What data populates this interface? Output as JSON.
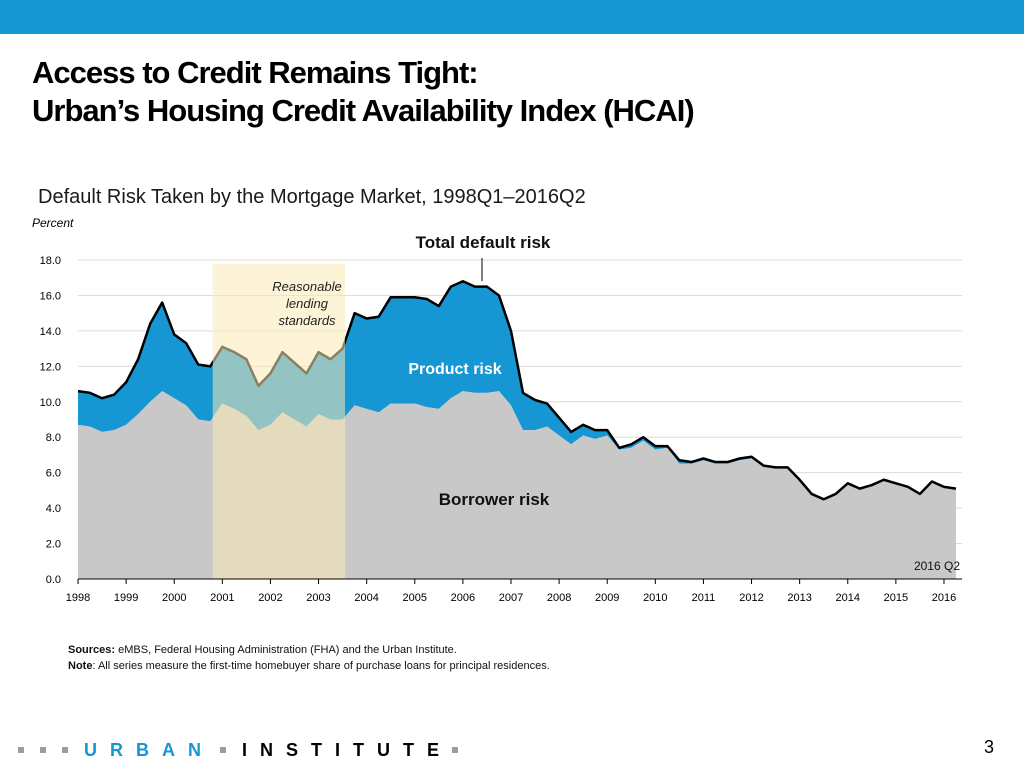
{
  "header": {
    "title_line1": "Access to Credit Remains Tight:",
    "title_line2": "Urban’s Housing Credit Availability Index (HCAI)"
  },
  "colors": {
    "accent": "#1696d2",
    "borrower": "#c8c8c8",
    "product": "#1696d2",
    "total": "#000000",
    "highlight": "#fbe9b6"
  },
  "chart_data": {
    "type": "area",
    "title": "Default Risk Taken by the Mortgage Market, 1998Q1–2016Q2",
    "ylabel": "Percent",
    "xlabel": "",
    "ylim": [
      0,
      18
    ],
    "yticks": [
      "0.0",
      "2.0",
      "4.0",
      "6.0",
      "8.0",
      "10.0",
      "12.0",
      "14.0",
      "16.0",
      "18.0"
    ],
    "xticks": [
      "1998",
      "1999",
      "2000",
      "2001",
      "2002",
      "2003",
      "2004",
      "2005",
      "2006",
      "2007",
      "2008",
      "2009",
      "2010",
      "2011",
      "2012",
      "2013",
      "2014",
      "2015",
      "2016"
    ],
    "xlim": [
      1998.0,
      2016.25
    ],
    "grid": true,
    "highlight_band": {
      "start": 2000.8,
      "end": 2003.55,
      "label": "Reasonable lending standards"
    },
    "annotations": {
      "total_label": "Total default risk",
      "product_label": "Product risk",
      "borrower_label": "Borrower risk",
      "end_label": "2016 Q2"
    },
    "series": [
      {
        "name": "Borrower risk",
        "x": [
          1998.0,
          1998.25,
          1998.5,
          1998.75,
          1999.0,
          1999.25,
          1999.5,
          1999.75,
          2000.0,
          2000.25,
          2000.5,
          2000.75,
          2001.0,
          2001.25,
          2001.5,
          2001.75,
          2002.0,
          2002.25,
          2002.5,
          2002.75,
          2003.0,
          2003.25,
          2003.5,
          2003.75,
          2004.0,
          2004.25,
          2004.5,
          2004.75,
          2005.0,
          2005.25,
          2005.5,
          2005.75,
          2006.0,
          2006.25,
          2006.5,
          2006.75,
          2007.0,
          2007.25,
          2007.5,
          2007.75,
          2008.0,
          2008.25,
          2008.5,
          2008.75,
          2009.0,
          2009.25,
          2009.5,
          2009.75,
          2010.0,
          2010.25,
          2010.5,
          2010.75,
          2011.0,
          2011.25,
          2011.5,
          2011.75,
          2012.0,
          2012.25,
          2012.5,
          2012.75,
          2013.0,
          2013.25,
          2013.5,
          2013.75,
          2014.0,
          2014.25,
          2014.5,
          2014.75,
          2015.0,
          2015.25,
          2015.5,
          2015.75,
          2016.0,
          2016.25
        ],
        "values": [
          8.7,
          8.6,
          8.3,
          8.4,
          8.7,
          9.3,
          10.0,
          10.6,
          10.2,
          9.8,
          9.0,
          8.9,
          9.9,
          9.6,
          9.2,
          8.4,
          8.7,
          9.4,
          9.0,
          8.6,
          9.3,
          9.0,
          9.0,
          9.8,
          9.6,
          9.4,
          9.9,
          9.9,
          9.9,
          9.7,
          9.6,
          10.2,
          10.6,
          10.5,
          10.5,
          10.6,
          9.8,
          8.4,
          8.4,
          8.6,
          8.1,
          7.6,
          8.1,
          7.9,
          8.1,
          7.3,
          7.4,
          7.8,
          7.3,
          7.4,
          6.5,
          6.5,
          6.7,
          6.5,
          6.5,
          6.7,
          6.8,
          6.4,
          6.3,
          6.3,
          5.6,
          4.8,
          4.5,
          4.8,
          5.4,
          5.1,
          5.3,
          5.6,
          5.4,
          5.2,
          4.8,
          5.5,
          5.2,
          5.1
        ]
      },
      {
        "name": "Total default risk",
        "x": [
          1998.0,
          1998.25,
          1998.5,
          1998.75,
          1999.0,
          1999.25,
          1999.5,
          1999.75,
          2000.0,
          2000.25,
          2000.5,
          2000.75,
          2001.0,
          2001.25,
          2001.5,
          2001.75,
          2002.0,
          2002.25,
          2002.5,
          2002.75,
          2003.0,
          2003.25,
          2003.5,
          2003.75,
          2004.0,
          2004.25,
          2004.5,
          2004.75,
          2005.0,
          2005.25,
          2005.5,
          2005.75,
          2006.0,
          2006.25,
          2006.5,
          2006.75,
          2007.0,
          2007.25,
          2007.5,
          2007.75,
          2008.0,
          2008.25,
          2008.5,
          2008.75,
          2009.0,
          2009.25,
          2009.5,
          2009.75,
          2010.0,
          2010.25,
          2010.5,
          2010.75,
          2011.0,
          2011.25,
          2011.5,
          2011.75,
          2012.0,
          2012.25,
          2012.5,
          2012.75,
          2013.0,
          2013.25,
          2013.5,
          2013.75,
          2014.0,
          2014.25,
          2014.5,
          2014.75,
          2015.0,
          2015.25,
          2015.5,
          2015.75,
          2016.0,
          2016.25
        ],
        "values": [
          10.6,
          10.5,
          10.2,
          10.4,
          11.1,
          12.4,
          14.4,
          15.6,
          13.8,
          13.3,
          12.1,
          12.0,
          13.1,
          12.8,
          12.4,
          10.9,
          11.6,
          12.8,
          12.2,
          11.6,
          12.8,
          12.4,
          13.0,
          15.0,
          14.7,
          14.8,
          15.9,
          15.9,
          15.9,
          15.8,
          15.4,
          16.5,
          16.8,
          16.5,
          16.5,
          16.0,
          14.0,
          10.5,
          10.1,
          9.9,
          9.1,
          8.3,
          8.7,
          8.4,
          8.4,
          7.4,
          7.6,
          8.0,
          7.5,
          7.5,
          6.7,
          6.6,
          6.8,
          6.6,
          6.6,
          6.8,
          6.9,
          6.4,
          6.3,
          6.3,
          5.6,
          4.8,
          4.5,
          4.8,
          5.4,
          5.1,
          5.3,
          5.6,
          5.4,
          5.2,
          4.8,
          5.5,
          5.2,
          5.1
        ]
      }
    ]
  },
  "notes": {
    "sources_label": "Sources:",
    "sources_text": " eMBS, Federal Housing Administration (FHA) and the Urban Institute.",
    "note_label": "Note",
    "note_text": ": All series measure the first-time homebuyer share of purchase loans for principal residences."
  },
  "footer": {
    "brand_part1": "URBAN",
    "brand_part2": "INSTITUTE",
    "page_number": "3"
  }
}
